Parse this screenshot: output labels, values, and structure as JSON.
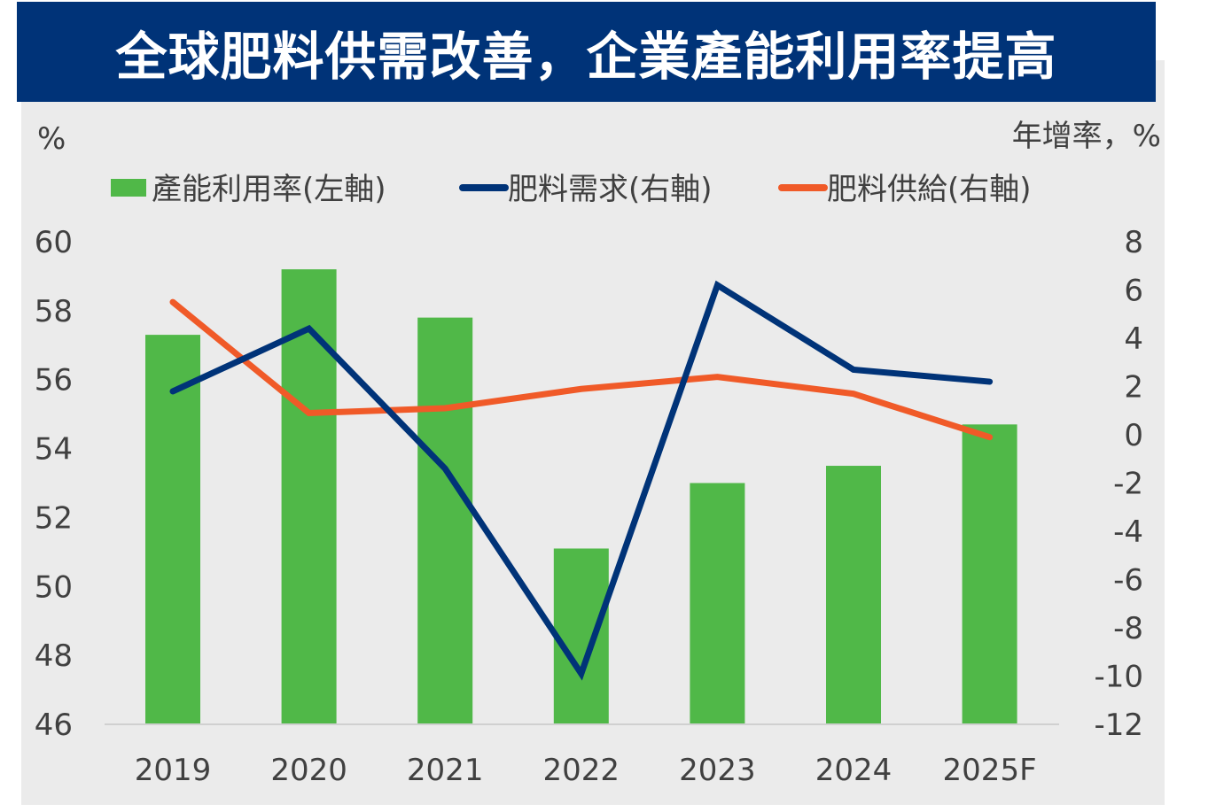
{
  "chart_data": {
    "type": "bar",
    "title": "全球肥料供需改善，企業產能利用率提高",
    "categories": [
      "2019",
      "2020",
      "2021",
      "2022",
      "2023",
      "2024",
      "2025F"
    ],
    "y_left": {
      "label": "%",
      "range": [
        46,
        60
      ],
      "ticks": [
        "60",
        "58",
        "56",
        "54",
        "52",
        "50",
        "48",
        "46"
      ]
    },
    "y_right": {
      "label": "年增率，%",
      "range": [
        -12,
        8
      ],
      "ticks": [
        "8",
        "6",
        "4",
        "2",
        "0",
        "-2",
        "-4",
        "-6",
        "-8",
        "-10",
        "-12"
      ]
    },
    "series": [
      {
        "name": "產能利用率(左軸)",
        "type": "bar",
        "axis": "left",
        "color": "#50b848",
        "values": [
          57.3,
          59.2,
          57.8,
          51.1,
          53.0,
          53.5,
          54.7
        ]
      },
      {
        "name": "肥料需求(右軸)",
        "type": "line",
        "axis": "right",
        "color": "#003378",
        "values": [
          1.8,
          4.4,
          -1.4,
          -9.9,
          6.2,
          2.7,
          2.2
        ]
      },
      {
        "name": "肥料供給(右軸)",
        "type": "line",
        "axis": "right",
        "color": "#f05a28",
        "values": [
          5.5,
          0.9,
          1.1,
          1.9,
          2.4,
          1.7,
          -0.1
        ]
      }
    ],
    "grid": false,
    "legend_position": "top"
  }
}
